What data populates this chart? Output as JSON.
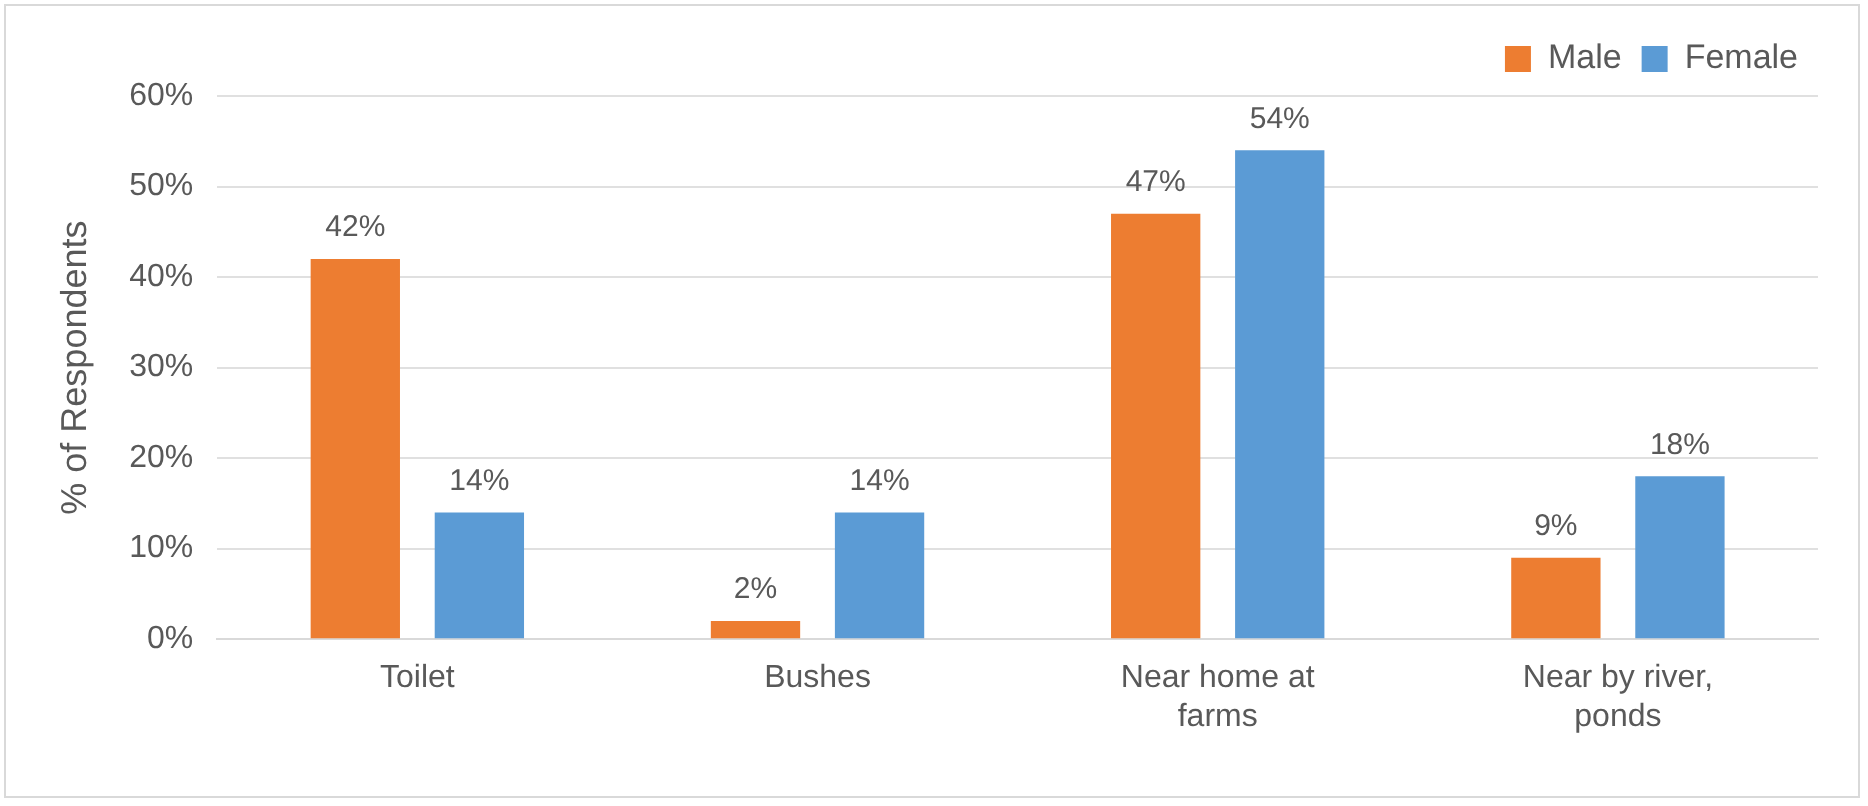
{
  "chart_data": {
    "type": "bar",
    "ylabel": "% of Respondents",
    "categories": [
      "Toilet",
      "Bushes",
      "Near home at farms",
      "Near by river, ponds"
    ],
    "series": [
      {
        "name": "Male",
        "color": "#ed7d31",
        "values": [
          42,
          2,
          47,
          9
        ],
        "value_labels": [
          "42%",
          "2%",
          "47%",
          "9%"
        ]
      },
      {
        "name": "Female",
        "color": "#5b9bd5",
        "values": [
          14,
          14,
          54,
          18
        ],
        "value_labels": [
          "14%",
          "14%",
          "54%",
          "18%"
        ]
      }
    ],
    "ylim": [
      0,
      60
    ],
    "yticks": [
      {
        "value": 0,
        "label": "0%"
      },
      {
        "value": 10,
        "label": "10%"
      },
      {
        "value": 20,
        "label": "20%"
      },
      {
        "value": 30,
        "label": "30%"
      },
      {
        "value": 40,
        "label": "40%"
      },
      {
        "value": 50,
        "label": "50%"
      },
      {
        "value": 60,
        "label": "60%"
      }
    ],
    "grid": "y",
    "legend": "top right"
  }
}
